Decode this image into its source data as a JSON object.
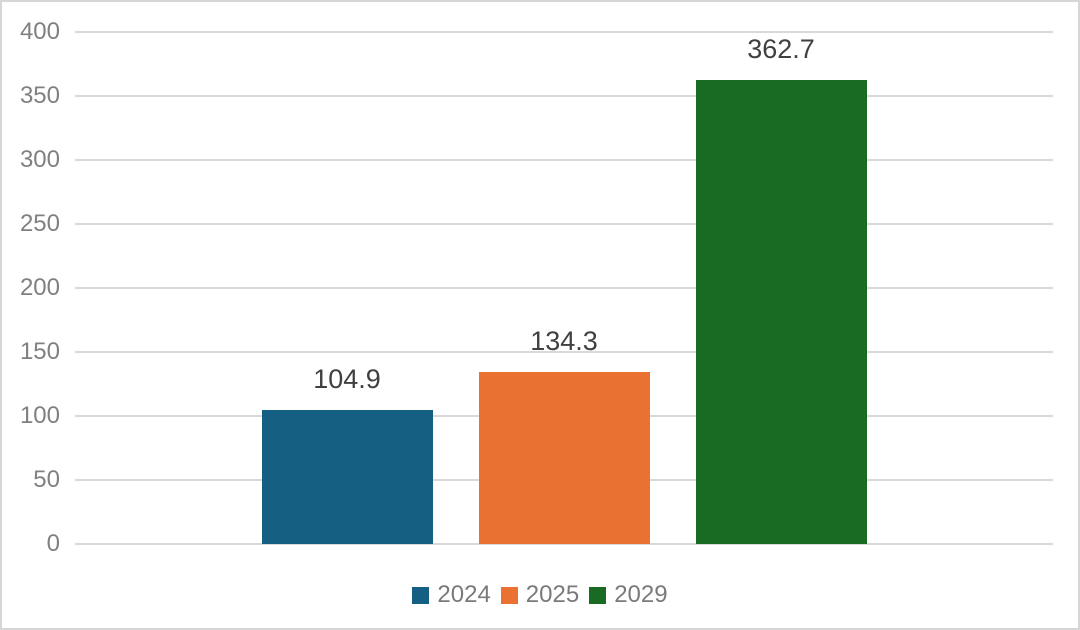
{
  "chart_data": {
    "type": "bar",
    "title": "",
    "xlabel": "",
    "ylabel": "",
    "categories": [
      "2024",
      "2025",
      "2029"
    ],
    "values": [
      104.9,
      134.3,
      362.7
    ],
    "data_labels": [
      "104.9",
      "134.3",
      "362.7"
    ],
    "series_colors": [
      "#156082",
      "#E97132",
      "#196B24"
    ],
    "ylim": [
      0,
      400
    ],
    "ytick_interval": 50,
    "ytick_labels": [
      "0",
      "50",
      "100",
      "150",
      "200",
      "250",
      "300",
      "350",
      "400"
    ],
    "grid": "horizontal",
    "legend": {
      "position": "bottom",
      "entries": [
        {
          "label": "2024",
          "color": "#156082"
        },
        {
          "label": "2025",
          "color": "#E97132"
        },
        {
          "label": "2029",
          "color": "#196B24"
        }
      ]
    }
  },
  "style": {
    "background": "#FFFFFF",
    "canvas_border_color": "#D6D6D6",
    "gridline_color": "#D9D9D9",
    "tick_text_color": "#808080",
    "legend_text_color": "#7A7A7A",
    "data_label_color": "#404040"
  }
}
